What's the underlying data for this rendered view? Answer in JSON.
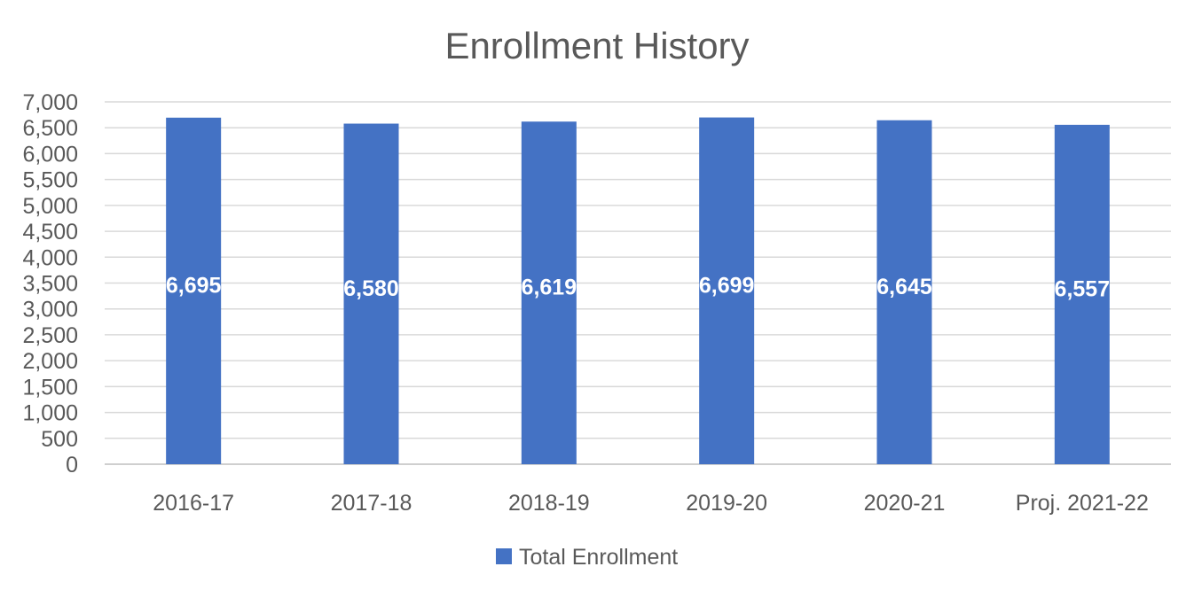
{
  "chart_data": {
    "type": "bar",
    "title": "Enrollment History",
    "categories": [
      "2016-17",
      "2017-18",
      "2018-19",
      "2019-20",
      "2020-21",
      "Proj. 2021-22"
    ],
    "series": [
      {
        "name": "Total Enrollment",
        "values": [
          6695,
          6580,
          6619,
          6699,
          6645,
          6557
        ],
        "data_labels": [
          "6,695",
          "6,580",
          "6,619",
          "6,699",
          "6,645",
          "6,557"
        ]
      }
    ],
    "ylim": [
      0,
      7000
    ],
    "y_ticks": [
      0,
      500,
      1000,
      1500,
      2000,
      2500,
      3000,
      3500,
      4000,
      4500,
      5000,
      5500,
      6000,
      6500,
      7000
    ],
    "y_tick_labels": [
      "0",
      "500",
      "1,000",
      "1,500",
      "2,000",
      "2,500",
      "3,000",
      "3,500",
      "4,000",
      "4,500",
      "5,000",
      "5,500",
      "6,000",
      "6,500",
      "7,000"
    ],
    "grid": true,
    "legend_position": "bottom",
    "bar_color": "#4472C4"
  }
}
